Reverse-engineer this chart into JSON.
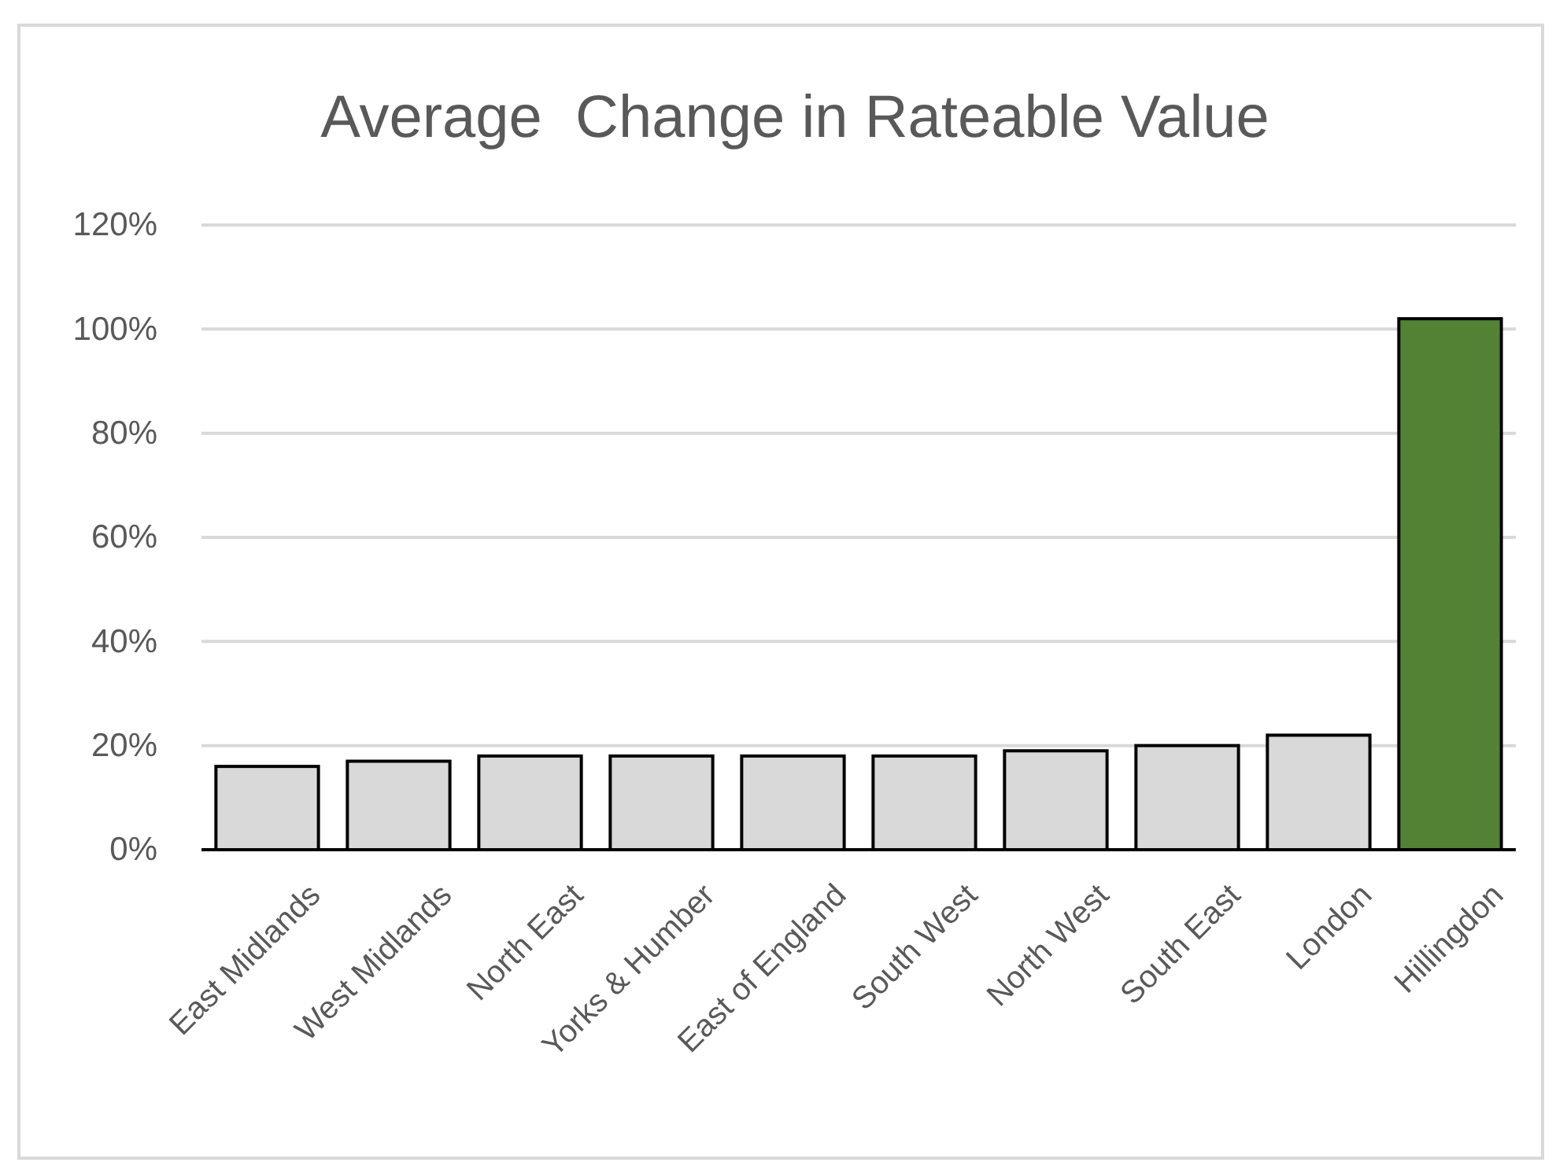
{
  "chart_data": {
    "type": "bar",
    "title": "Average  Change in Rateable Value",
    "categories": [
      "East Midlands",
      "West Midlands",
      "North East",
      "Yorks & Humber",
      "East of England",
      "South West",
      "North West",
      "South East",
      "London",
      "Hillingdon"
    ],
    "values": [
      16,
      17,
      18,
      18,
      18,
      18,
      19,
      20,
      22,
      102
    ],
    "colors": [
      "#d9d9d9",
      "#d9d9d9",
      "#d9d9d9",
      "#d9d9d9",
      "#d9d9d9",
      "#d9d9d9",
      "#d9d9d9",
      "#d9d9d9",
      "#d9d9d9",
      "#548235"
    ],
    "ylim": [
      0,
      120
    ],
    "yticks": [
      {
        "value": 0,
        "label": "0%"
      },
      {
        "value": 20,
        "label": "20%"
      },
      {
        "value": 40,
        "label": "40%"
      },
      {
        "value": 60,
        "label": "60%"
      },
      {
        "value": 80,
        "label": "80%"
      },
      {
        "value": 100,
        "label": "100%"
      },
      {
        "value": 120,
        "label": "120%"
      }
    ],
    "grid": "y"
  }
}
